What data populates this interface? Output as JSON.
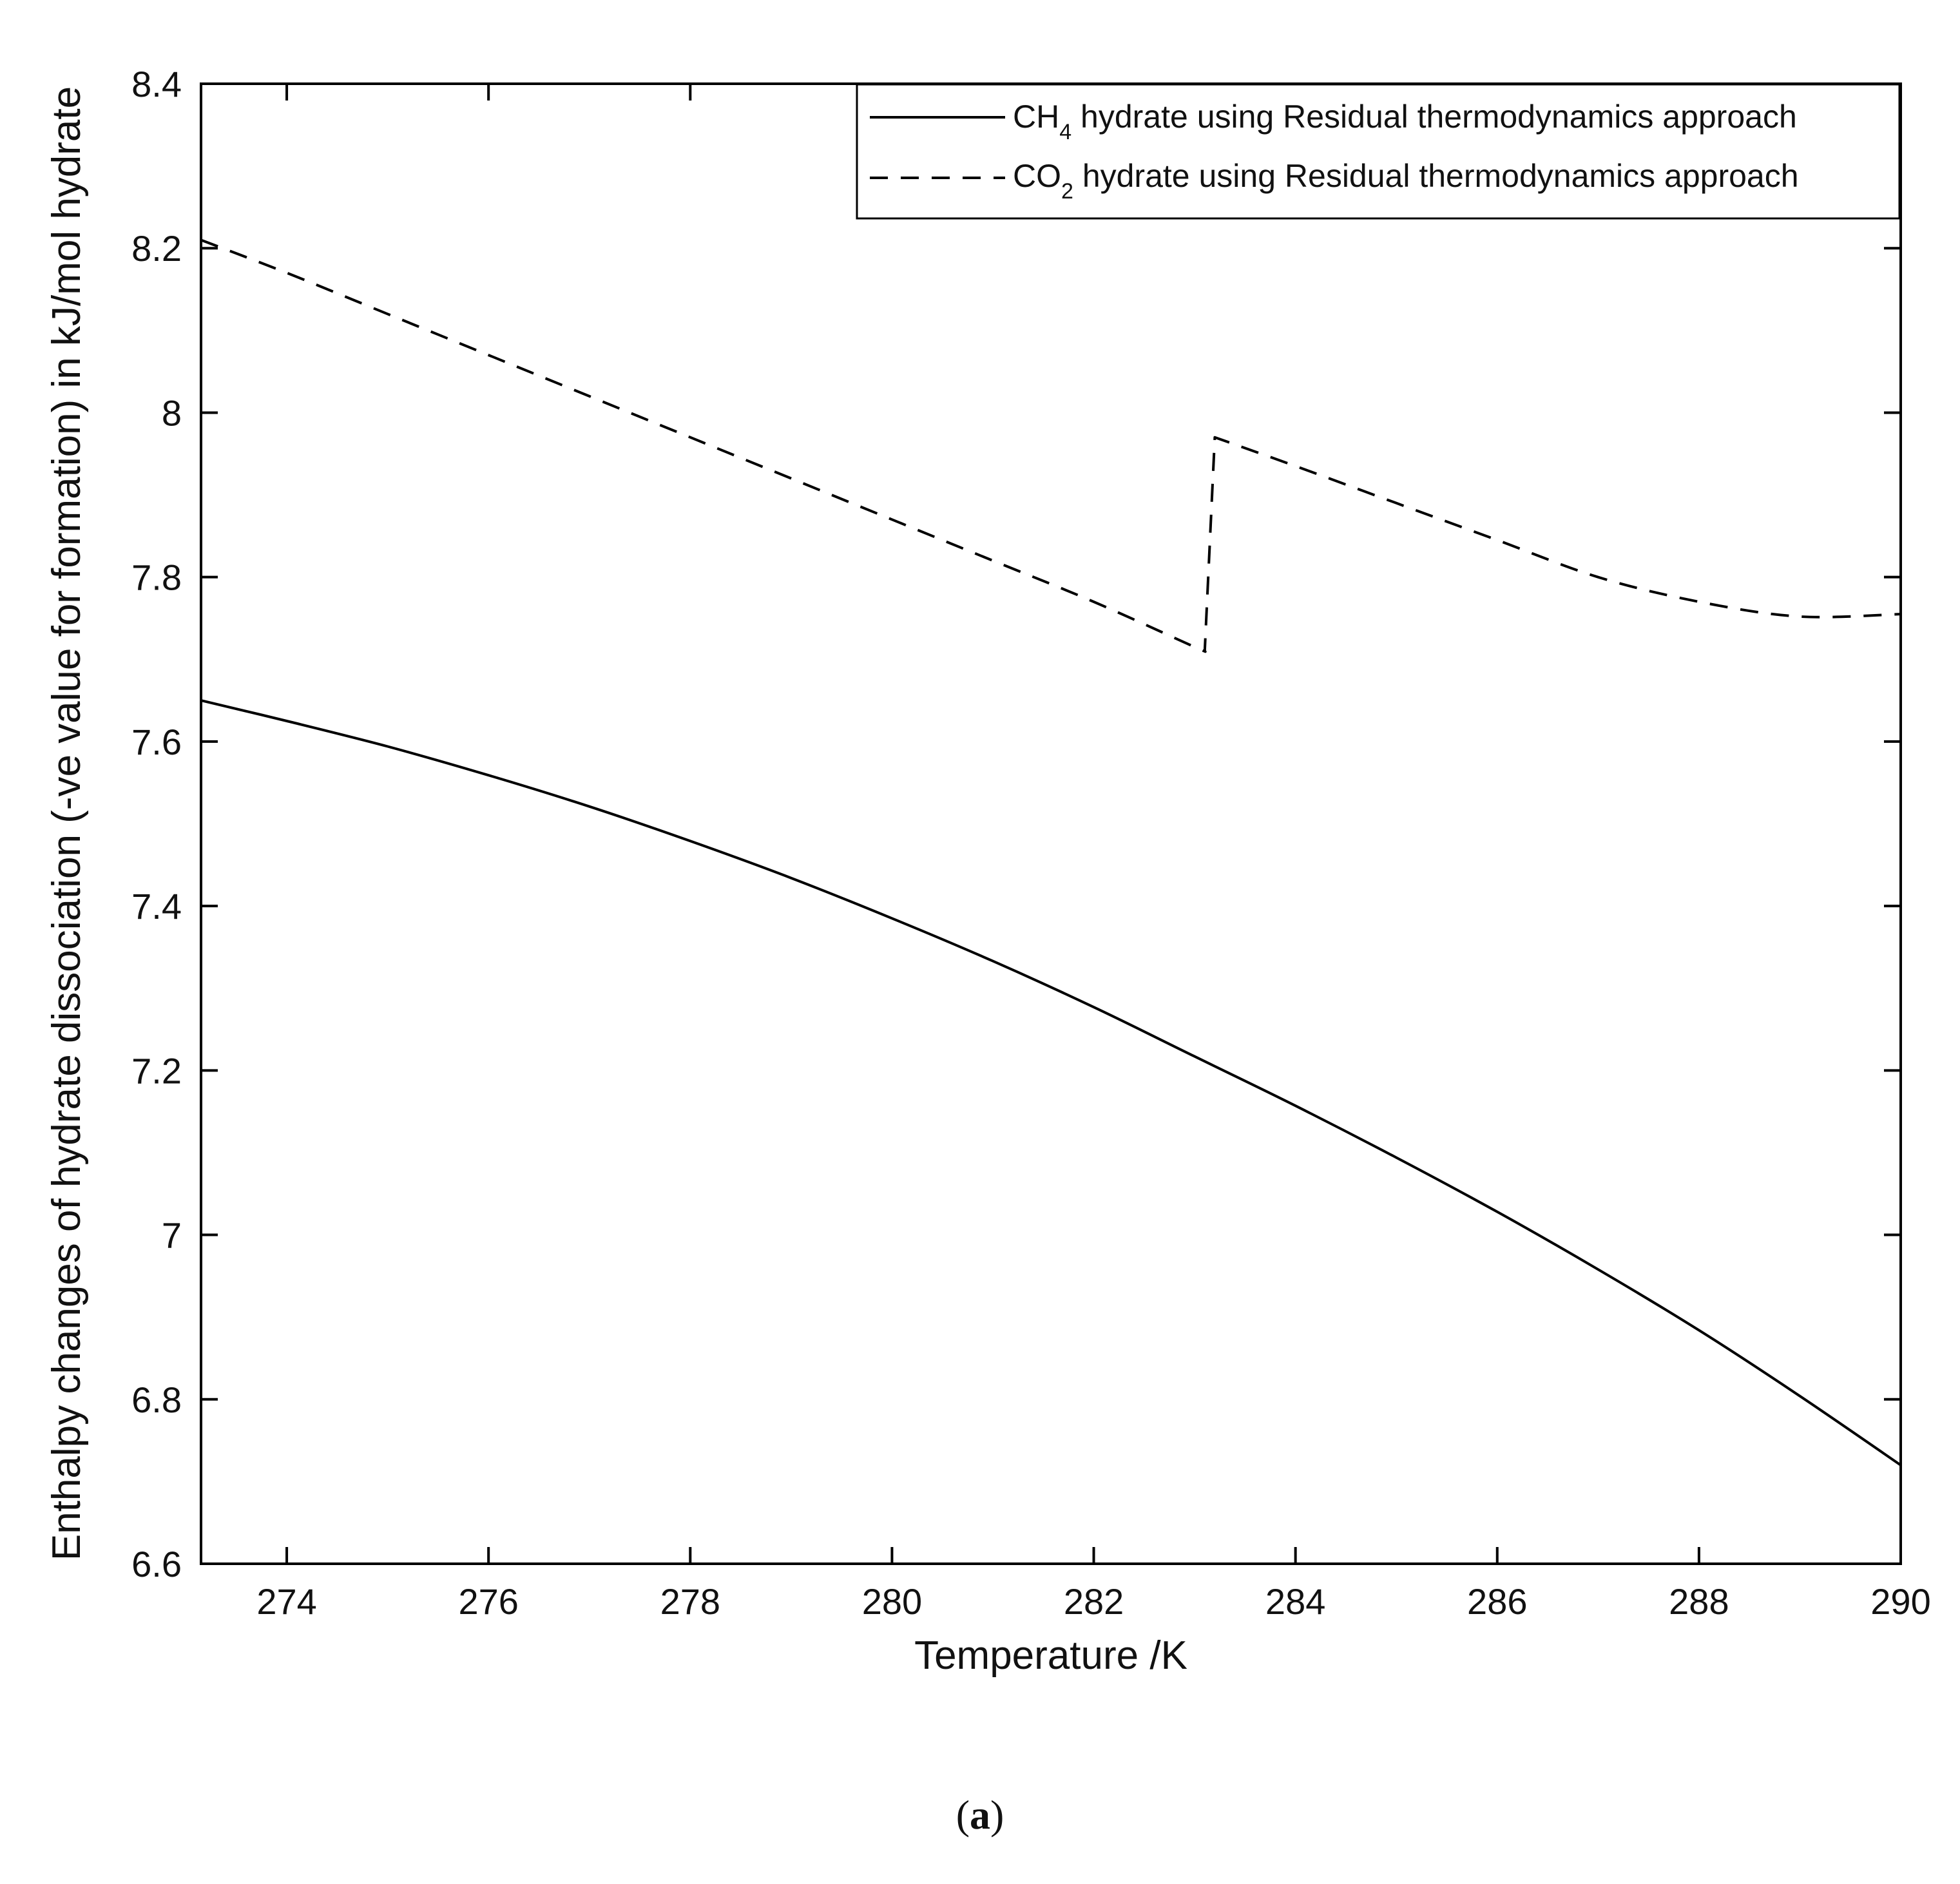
{
  "chart_data": {
    "type": "line",
    "xlabel": "Temperature /K",
    "ylabel": "Enthalpy changes of hydrate dissociation (-ve value for formation) in kJ/mol hydrate",
    "xlim": [
      273.15,
      290
    ],
    "ylim": [
      6.6,
      8.4
    ],
    "x_ticks": [
      274,
      276,
      278,
      280,
      282,
      284,
      286,
      288,
      290
    ],
    "x_tick_labels": [
      "274",
      "276",
      "278",
      "280",
      "282",
      "284",
      "286",
      "288",
      "290"
    ],
    "y_ticks": [
      6.6,
      6.8,
      7.0,
      7.2,
      7.4,
      7.6,
      7.8,
      8.0,
      8.2,
      8.4
    ],
    "y_tick_labels": [
      "6.6",
      "6.8",
      "7",
      "7.2",
      "7.4",
      "7.6",
      "7.8",
      "8",
      "8.2",
      "8.4"
    ],
    "grid": false,
    "legend_position": "top-right",
    "series": [
      {
        "name_main": "CH",
        "name_sub": "4",
        "name_rest": " hydrate using Residual thermodynamics approach",
        "line_style": "solid",
        "color": "#000000",
        "x": [
          273.15,
          274,
          275,
          276,
          277,
          278,
          279,
          280,
          281,
          282,
          283,
          284,
          285,
          286,
          287,
          288,
          289,
          290
        ],
        "y": [
          7.65,
          7.625,
          7.594,
          7.559,
          7.521,
          7.479,
          7.434,
          7.385,
          7.333,
          7.277,
          7.217,
          7.157,
          7.094,
          7.028,
          6.958,
          6.884,
          6.804,
          6.72
        ]
      },
      {
        "name_main": "CO",
        "name_sub": "2",
        "name_rest": " hydrate using Residual thermodynamics approach",
        "line_style": "dashed",
        "color": "#000000",
        "x": [
          273.15,
          274,
          275,
          276,
          277,
          278,
          279,
          280,
          281,
          282,
          283,
          283.1,
          283.15,
          283.2,
          284,
          285,
          286,
          287,
          288,
          289,
          290
        ],
        "y": [
          8.21,
          8.17,
          8.12,
          8.07,
          8.02,
          7.97,
          7.92,
          7.87,
          7.82,
          7.77,
          7.715,
          7.71,
          7.84,
          7.97,
          7.935,
          7.89,
          7.845,
          7.8,
          7.77,
          7.752,
          7.755
        ]
      }
    ]
  },
  "caption": {
    "open": "(",
    "letter": "a",
    "close": ")"
  }
}
